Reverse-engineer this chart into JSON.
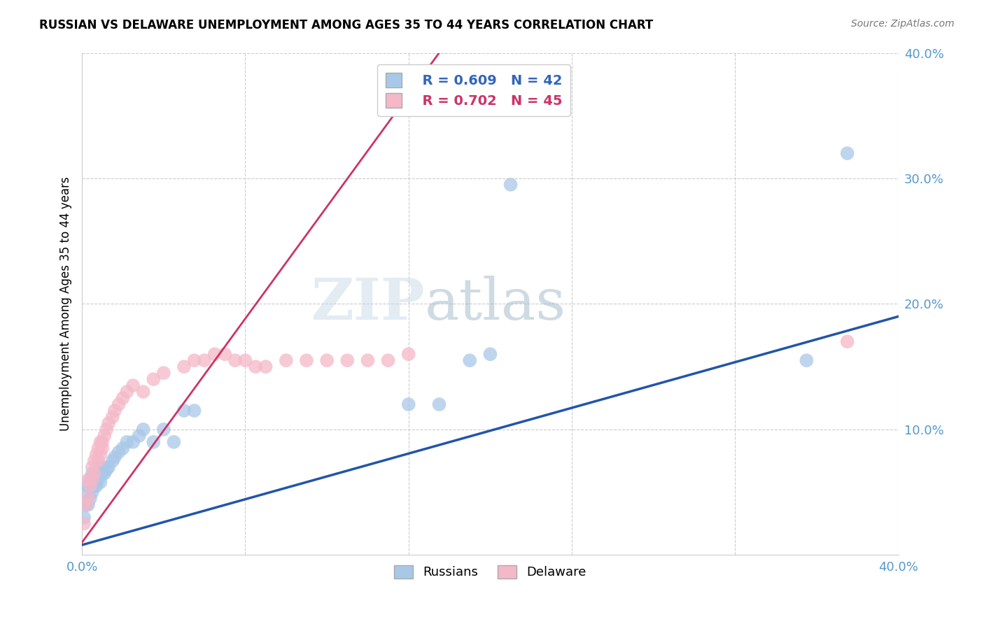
{
  "title": "RUSSIAN VS DELAWARE UNEMPLOYMENT AMONG AGES 35 TO 44 YEARS CORRELATION CHART",
  "source": "Source: ZipAtlas.com",
  "ylabel": "Unemployment Among Ages 35 to 44 years",
  "xlim": [
    0.0,
    0.4
  ],
  "ylim": [
    0.0,
    0.4
  ],
  "grid_color": "#cccccc",
  "background_color": "#ffffff",
  "russians_color": "#a8c8e8",
  "delaware_color": "#f4b8c8",
  "russians_line_color": "#2255aa",
  "delaware_line_color": "#cc3366",
  "legend_R_russians": "R = 0.609",
  "legend_N_russians": "N = 42",
  "legend_R_delaware": "R = 0.702",
  "legend_N_delaware": "N = 45",
  "russians_line_x": [
    0.0,
    0.4
  ],
  "russians_line_y": [
    0.008,
    0.19
  ],
  "delaware_line_x": [
    0.0,
    0.175
  ],
  "delaware_line_y": [
    0.01,
    0.4
  ],
  "russians_x": [
    0.001,
    0.002,
    0.002,
    0.003,
    0.003,
    0.004,
    0.004,
    0.005,
    0.005,
    0.006,
    0.006,
    0.007,
    0.007,
    0.008,
    0.008,
    0.009,
    0.009,
    0.01,
    0.01,
    0.011,
    0.012,
    0.013,
    0.015,
    0.016,
    0.018,
    0.02,
    0.022,
    0.025,
    0.028,
    0.03,
    0.035,
    0.04,
    0.045,
    0.05,
    0.055,
    0.16,
    0.175,
    0.19,
    0.2,
    0.21,
    0.355,
    0.375
  ],
  "russians_y": [
    0.03,
    0.04,
    0.05,
    0.04,
    0.055,
    0.045,
    0.06,
    0.05,
    0.065,
    0.055,
    0.06,
    0.055,
    0.06,
    0.06,
    0.065,
    0.058,
    0.07,
    0.065,
    0.07,
    0.065,
    0.068,
    0.07,
    0.075,
    0.078,
    0.082,
    0.085,
    0.09,
    0.09,
    0.095,
    0.1,
    0.09,
    0.1,
    0.09,
    0.115,
    0.115,
    0.12,
    0.12,
    0.155,
    0.16,
    0.295,
    0.155,
    0.32
  ],
  "delaware_x": [
    0.001,
    0.002,
    0.003,
    0.003,
    0.004,
    0.005,
    0.005,
    0.006,
    0.006,
    0.007,
    0.008,
    0.008,
    0.009,
    0.009,
    0.01,
    0.01,
    0.011,
    0.012,
    0.013,
    0.015,
    0.016,
    0.018,
    0.02,
    0.022,
    0.025,
    0.03,
    0.035,
    0.04,
    0.05,
    0.055,
    0.06,
    0.065,
    0.07,
    0.075,
    0.08,
    0.085,
    0.09,
    0.1,
    0.11,
    0.12,
    0.13,
    0.14,
    0.15,
    0.16,
    0.375
  ],
  "delaware_y": [
    0.025,
    0.04,
    0.045,
    0.06,
    0.055,
    0.06,
    0.07,
    0.065,
    0.075,
    0.08,
    0.075,
    0.085,
    0.08,
    0.09,
    0.085,
    0.09,
    0.095,
    0.1,
    0.105,
    0.11,
    0.115,
    0.12,
    0.125,
    0.13,
    0.135,
    0.13,
    0.14,
    0.145,
    0.15,
    0.155,
    0.155,
    0.16,
    0.16,
    0.155,
    0.155,
    0.15,
    0.15,
    0.155,
    0.155,
    0.155,
    0.155,
    0.155,
    0.155,
    0.16,
    0.17
  ]
}
